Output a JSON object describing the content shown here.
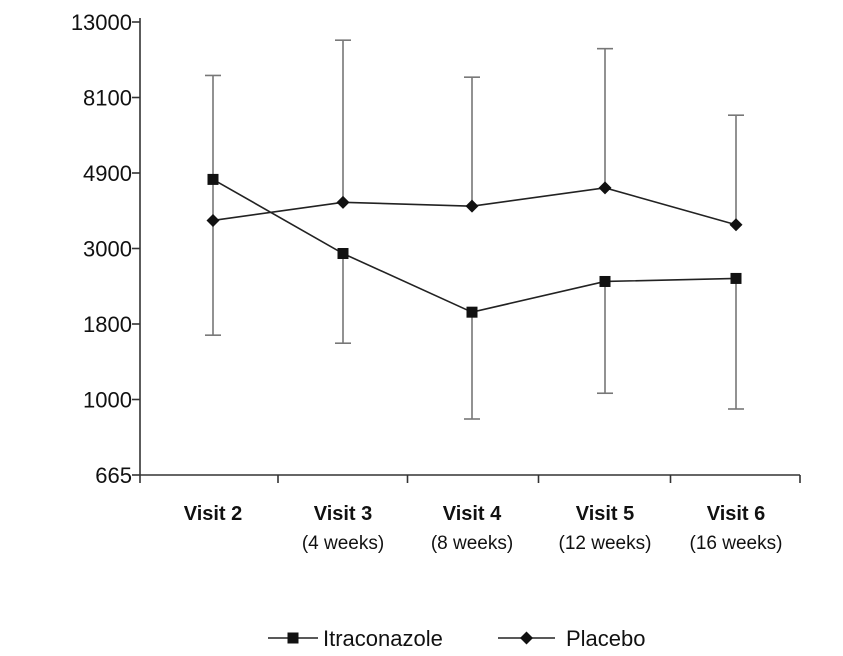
{
  "chart_data": {
    "type": "line",
    "y_scale": "log",
    "y_ticks": [
      665,
      1000,
      1800,
      3000,
      4900,
      8100,
      13000
    ],
    "ylim": [
      665,
      13000
    ],
    "categories": [
      {
        "label": "Visit 2",
        "sub": ""
      },
      {
        "label": "Visit 3",
        "sub": "(4 weeks)"
      },
      {
        "label": "Visit 4",
        "sub": "(8 weeks)"
      },
      {
        "label": "Visit 5",
        "sub": "(12 weeks)"
      },
      {
        "label": "Visit 6",
        "sub": "(16 weeks)"
      }
    ],
    "series": [
      {
        "name": "Itraconazole",
        "marker": "square",
        "values": [
          4700,
          2900,
          1950,
          2400,
          2450
        ],
        "error_upper": [
          null,
          null,
          null,
          null,
          null
        ],
        "error_lower": [
          null,
          1550,
          900,
          1050,
          950
        ]
      },
      {
        "name": "Placebo",
        "marker": "diamond",
        "values": [
          3600,
          4050,
          3950,
          4450,
          3500
        ],
        "error_upper": [
          9300,
          11600,
          9200,
          11000,
          7200
        ],
        "error_lower": [
          1650,
          null,
          null,
          null,
          null
        ]
      }
    ],
    "legend": {
      "position": "bottom-center"
    },
    "grid": false,
    "title": "",
    "xlabel": "",
    "ylabel": ""
  }
}
